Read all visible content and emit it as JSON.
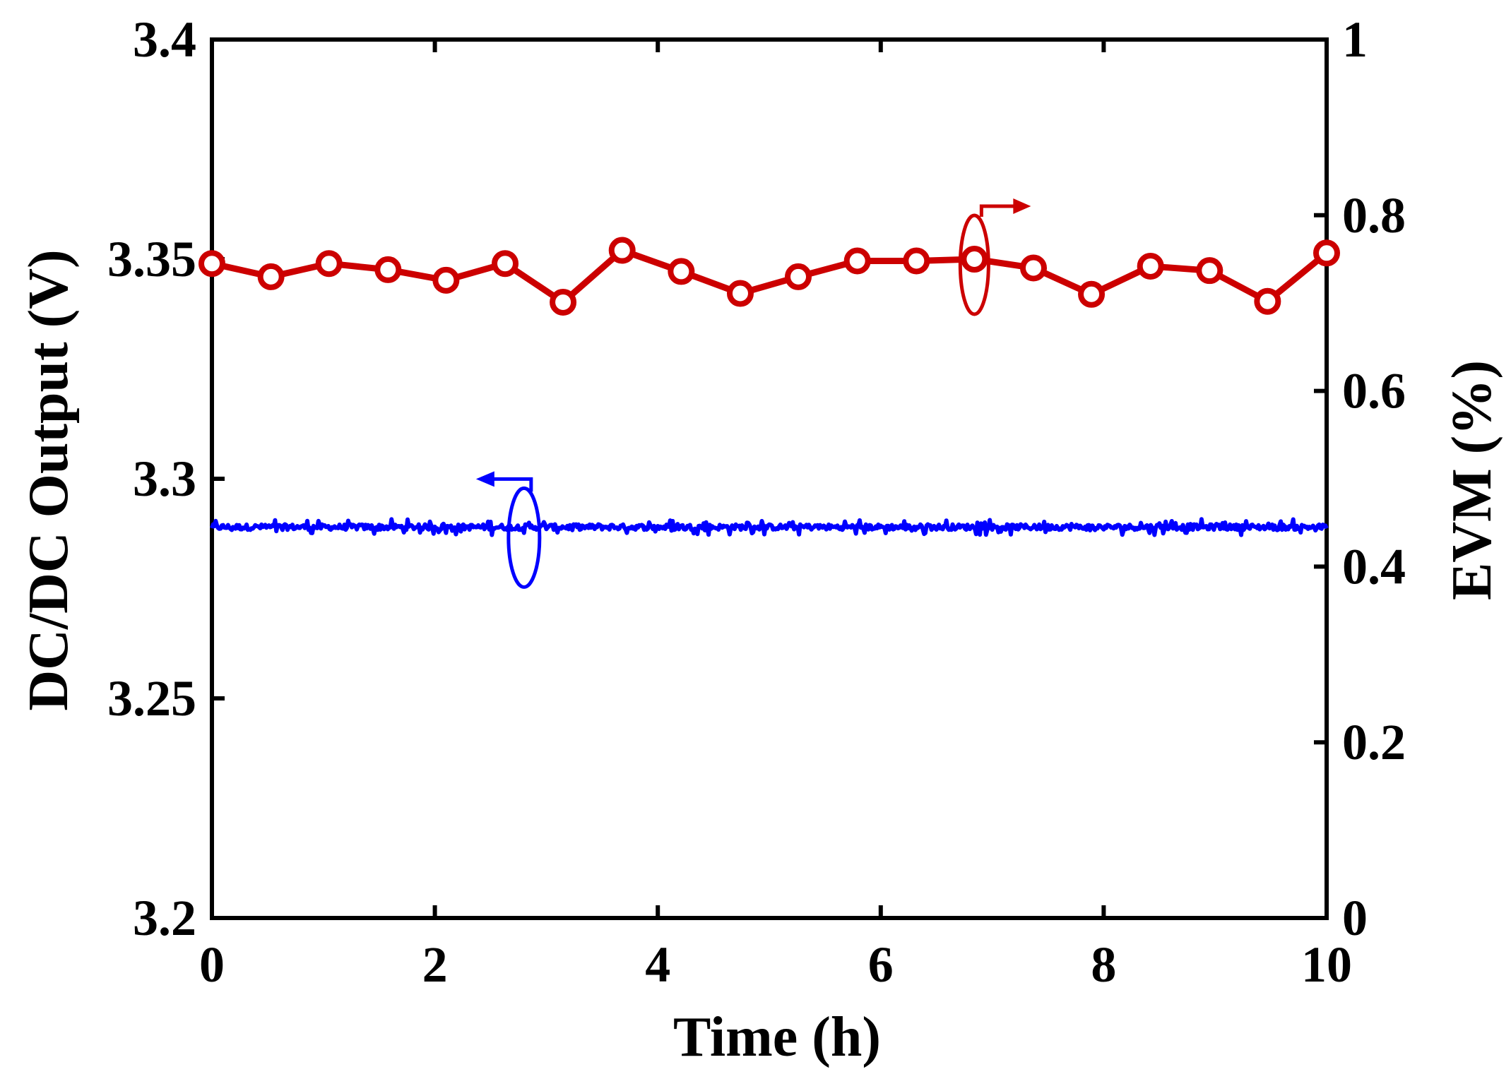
{
  "chart_data": {
    "type": "line",
    "xlabel": "Time (h)",
    "ylabel_left": "DC/DC Output (V)",
    "ylabel_right": "EVM (%)",
    "xlim": [
      0,
      10
    ],
    "ylim_left": [
      3.2,
      3.4
    ],
    "ylim_right": [
      0,
      1
    ],
    "x_ticks": [
      "0",
      "2",
      "4",
      "6",
      "8",
      "10"
    ],
    "y_left_ticks": [
      "3.2",
      "3.25",
      "3.3",
      "3.35",
      "3.4"
    ],
    "y_right_ticks": [
      "0",
      "0.2",
      "0.4",
      "0.6",
      "0.8",
      "1"
    ],
    "grid": false,
    "series": [
      {
        "axis": "right",
        "color": "#cc0000",
        "marker": "open-circle",
        "x": [
          0,
          0.53,
          1.05,
          1.58,
          2.1,
          2.63,
          3.15,
          3.68,
          4.21,
          4.74,
          5.26,
          5.79,
          6.32,
          6.84,
          7.37,
          7.89,
          8.42,
          8.95,
          9.47,
          10
        ],
        "values": [
          0.745,
          0.73,
          0.745,
          0.738,
          0.726,
          0.745,
          0.701,
          0.76,
          0.736,
          0.711,
          0.73,
          0.748,
          0.748,
          0.75,
          0.74,
          0.71,
          0.742,
          0.737,
          0.702,
          0.757
        ]
      },
      {
        "axis": "left",
        "color": "#0000ff",
        "marker": "none",
        "mean": 3.289,
        "noise_amplitude": 0.0018
      }
    ],
    "annotations": [
      {
        "kind": "axis-indicator",
        "series": 0,
        "direction": "right",
        "color": "#cc0000"
      },
      {
        "kind": "axis-indicator",
        "series": 1,
        "direction": "left",
        "color": "#0000ff"
      }
    ]
  }
}
